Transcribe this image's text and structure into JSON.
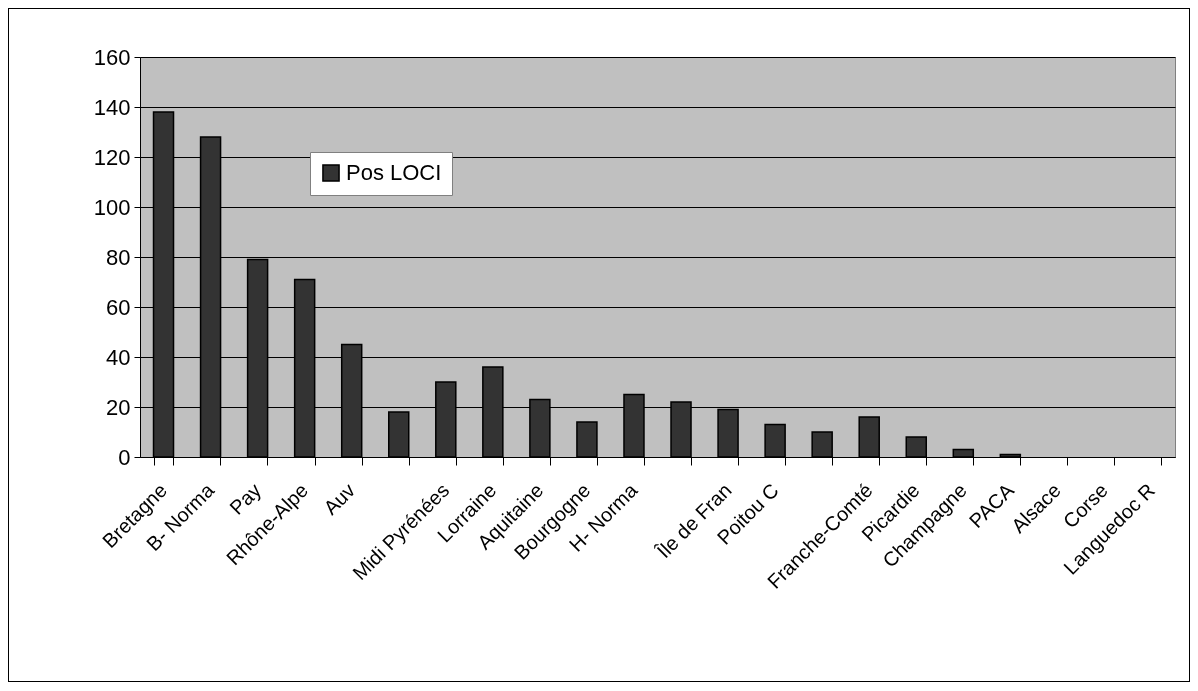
{
  "chart_data": {
    "type": "bar",
    "categories": [
      "Bretagne",
      "B- Norma",
      "Pay",
      "Rhône-Alpe",
      "Auv",
      null,
      "Midi Pyrénées",
      "Lorraine",
      "Aquitaine",
      "Bourgogne",
      "H- Norma",
      null,
      "Île de Fran",
      "Poitou C",
      null,
      "Franche-Comté",
      "Picardie",
      "Champagne",
      "PACA",
      "Alsace",
      "Corse",
      "Languedoc R"
    ],
    "series": [
      {
        "name": "Pos LOCI",
        "color": "#333333",
        "values": [
          138,
          128,
          79,
          71,
          45,
          18,
          30,
          36,
          23,
          14,
          25,
          22,
          19,
          13,
          10,
          16,
          8,
          3,
          1,
          0,
          0,
          0
        ]
      }
    ],
    "ylim": [
      0,
      160
    ],
    "yticks": [
      0,
      20,
      40,
      60,
      80,
      100,
      120,
      140,
      160
    ],
    "grid": "y",
    "legend": "top left"
  }
}
